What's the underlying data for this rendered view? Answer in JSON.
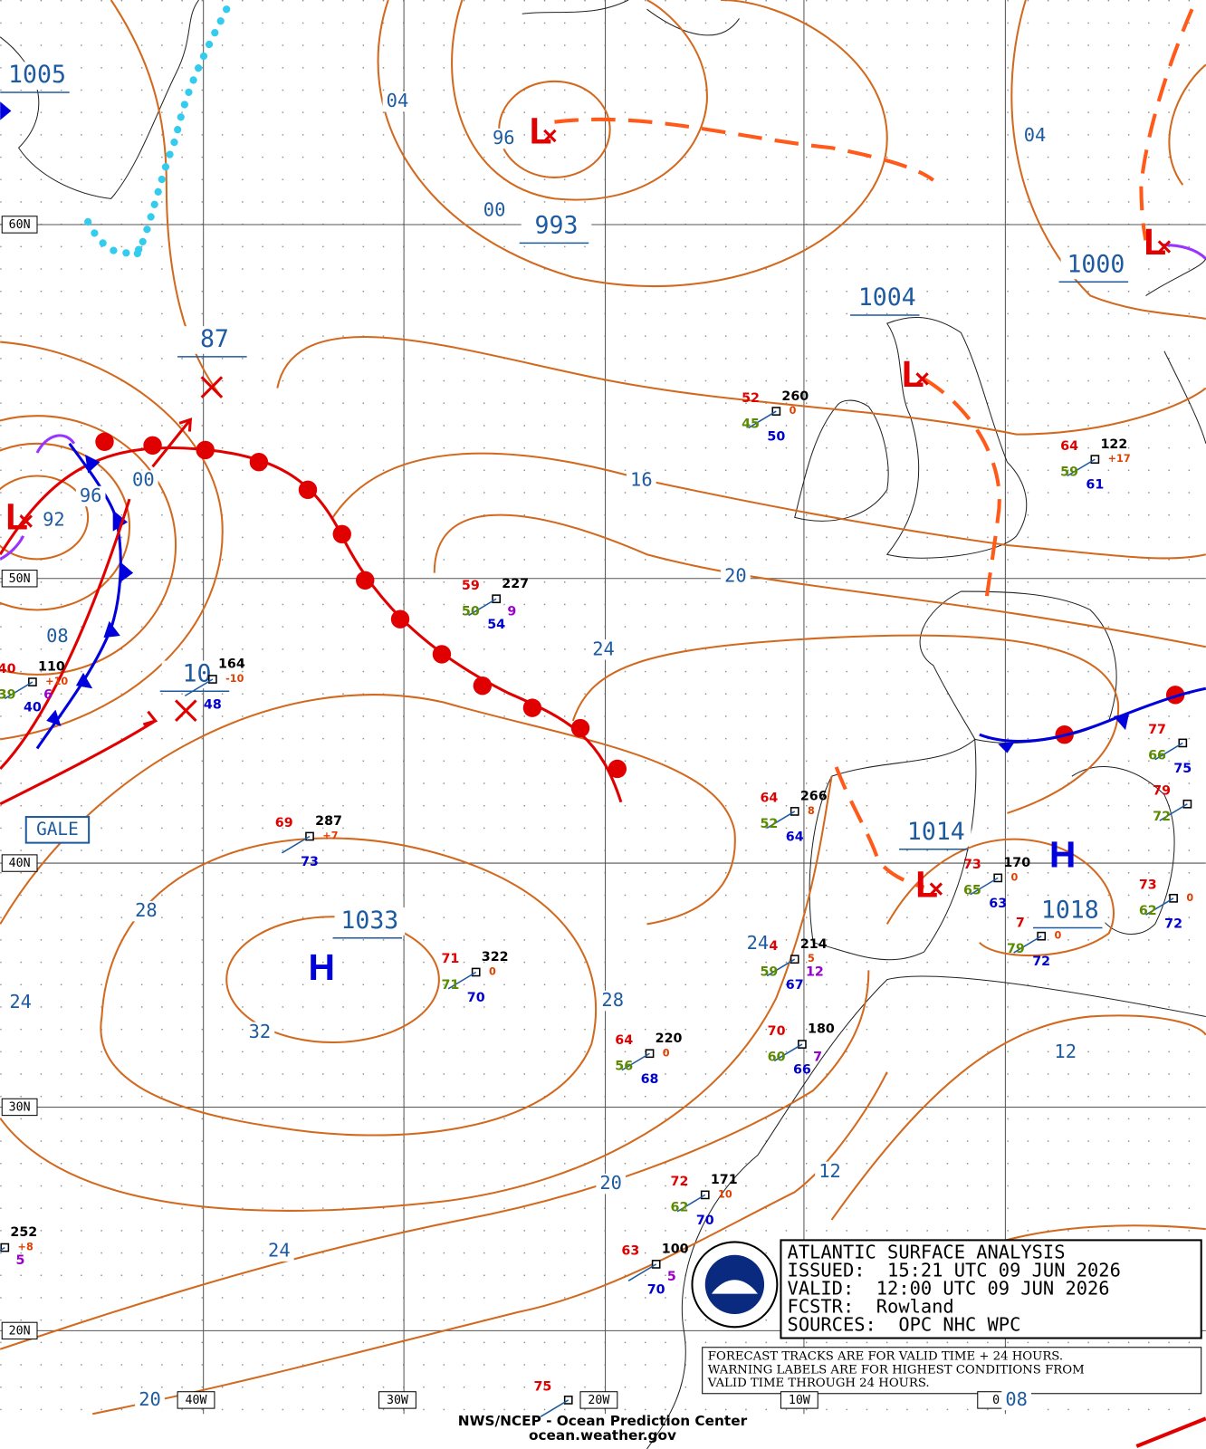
{
  "grid_labels": {
    "lat": [
      "60N",
      "50N",
      "40N",
      "30N",
      "20N"
    ],
    "lon": [
      "40W",
      "30W",
      "20W",
      "10W",
      "0"
    ]
  },
  "center_labels": [
    "1005",
    "993",
    "1000",
    "1004",
    "87",
    "10",
    "1033",
    "1014",
    "1018"
  ],
  "isobar_labels": [
    "04",
    "96",
    "00",
    "04",
    "96",
    "00",
    "92",
    "16",
    "20",
    "08",
    "24",
    "28",
    "24",
    "32",
    "28",
    "24",
    "12",
    "20",
    "12",
    "24",
    "20",
    "08"
  ],
  "systems": [
    "L",
    "L",
    "L",
    "L",
    "L",
    "H",
    "H"
  ],
  "gale": "GALE",
  "role_colors": {
    "temp": "#e00000",
    "pres": "#000000",
    "tend": "#e04000",
    "dew": "#5a8a00",
    "wx": "#9900cc",
    "sst": "#0000cc"
  },
  "stations": [
    [
      {
        "role": "temp",
        "text": "52"
      },
      {
        "role": "pres",
        "text": "260"
      },
      {
        "role": "tend",
        "text": "0"
      },
      {
        "role": "dew",
        "text": "45"
      },
      {
        "role": "sst",
        "text": "50"
      }
    ],
    [
      {
        "role": "temp",
        "text": "64"
      },
      {
        "role": "pres",
        "text": "122"
      },
      {
        "role": "tend",
        "text": "+17"
      },
      {
        "role": "dew",
        "text": "59"
      },
      {
        "role": "sst",
        "text": "61"
      }
    ],
    [
      {
        "role": "temp",
        "text": "59"
      },
      {
        "role": "pres",
        "text": "227"
      },
      {
        "role": "dew",
        "text": "50"
      },
      {
        "role": "wx",
        "text": "9"
      },
      {
        "role": "sst",
        "text": "54"
      }
    ],
    [
      {
        "role": "temp",
        "text": "40"
      },
      {
        "role": "pres",
        "text": "110"
      },
      {
        "role": "tend",
        "text": "+10"
      },
      {
        "role": "dew",
        "text": "39"
      },
      {
        "role": "wx",
        "text": "6"
      },
      {
        "role": "sst",
        "text": "40"
      }
    ],
    [
      {
        "role": "pres",
        "text": "164"
      },
      {
        "role": "tend",
        "text": "-10"
      },
      {
        "role": "sst",
        "text": "48"
      }
    ],
    [
      {
        "role": "temp",
        "text": "64"
      },
      {
        "role": "pres",
        "text": "266"
      },
      {
        "role": "tend",
        "text": "8"
      },
      {
        "role": "dew",
        "text": "52"
      },
      {
        "role": "sst",
        "text": "64"
      }
    ],
    [
      {
        "role": "temp",
        "text": "69"
      },
      {
        "role": "pres",
        "text": "287"
      },
      {
        "role": "tend",
        "text": "+7"
      },
      {
        "role": "sst",
        "text": "73"
      }
    ],
    [
      {
        "role": "temp",
        "text": "73"
      },
      {
        "role": "pres",
        "text": "170"
      },
      {
        "role": "tend",
        "text": "0"
      },
      {
        "role": "dew",
        "text": "65"
      },
      {
        "role": "sst",
        "text": "63"
      }
    ],
    [
      {
        "role": "temp",
        "text": "71"
      },
      {
        "role": "pres",
        "text": "322"
      },
      {
        "role": "tend",
        "text": "0"
      },
      {
        "role": "dew",
        "text": "71"
      },
      {
        "role": "sst",
        "text": "70"
      }
    ],
    [
      {
        "role": "temp",
        "text": "4"
      },
      {
        "role": "pres",
        "text": "214"
      },
      {
        "role": "tend",
        "text": "5"
      },
      {
        "role": "dew",
        "text": "59"
      },
      {
        "role": "wx",
        "text": "12"
      },
      {
        "role": "sst",
        "text": "67"
      }
    ],
    [
      {
        "role": "temp",
        "text": "7"
      },
      {
        "role": "tend",
        "text": "0"
      },
      {
        "role": "dew",
        "text": "79"
      },
      {
        "role": "sst",
        "text": "72"
      }
    ],
    [
      {
        "role": "temp",
        "text": "73"
      },
      {
        "role": "tend",
        "text": "0"
      },
      {
        "role": "dew",
        "text": "62"
      },
      {
        "role": "sst",
        "text": "72"
      }
    ],
    [
      {
        "role": "temp",
        "text": "77"
      },
      {
        "role": "dew",
        "text": "66"
      },
      {
        "role": "sst",
        "text": "75"
      }
    ],
    [
      {
        "role": "temp",
        "text": "79"
      },
      {
        "role": "dew",
        "text": "72"
      }
    ],
    [
      {
        "role": "temp",
        "text": "64"
      },
      {
        "role": "pres",
        "text": "220"
      },
      {
        "role": "tend",
        "text": "0"
      },
      {
        "role": "dew",
        "text": "56"
      },
      {
        "role": "sst",
        "text": "68"
      }
    ],
    [
      {
        "role": "temp",
        "text": "70"
      },
      {
        "role": "pres",
        "text": "180"
      },
      {
        "role": "dew",
        "text": "60"
      },
      {
        "role": "wx",
        "text": "7"
      },
      {
        "role": "sst",
        "text": "66"
      }
    ],
    [
      {
        "role": "temp",
        "text": "72"
      },
      {
        "role": "pres",
        "text": "171"
      },
      {
        "role": "tend",
        "text": "10"
      },
      {
        "role": "dew",
        "text": "62"
      },
      {
        "role": "sst",
        "text": "70"
      }
    ],
    [
      {
        "role": "temp",
        "text": "63"
      },
      {
        "role": "pres",
        "text": "100"
      },
      {
        "role": "wx",
        "text": "5"
      },
      {
        "role": "sst",
        "text": "70"
      }
    ],
    [
      {
        "role": "pres",
        "text": "252"
      },
      {
        "role": "tend",
        "text": "+8"
      },
      {
        "role": "wx",
        "text": "5"
      }
    ],
    [
      {
        "role": "temp",
        "text": "75"
      }
    ]
  ],
  "info_box": [
    "ATLANTIC SURFACE ANALYSIS",
    "ISSUED:  15:21 UTC 09 JUN 2026",
    "VALID:  12:00 UTC 09 JUN 2026",
    "FCSTR:  Rowland",
    "SOURCES:  OPC NHC WPC"
  ],
  "notice": [
    "FORECAST TRACKS ARE FOR VALID TIME + 24 HOURS.",
    "WARNING LABELS ARE FOR HIGHEST CONDITIONS FROM",
    "VALID TIME THROUGH 24 HOURS."
  ],
  "footer": [
    "NWS/NCEP - Ocean Prediction Center",
    "ocean.weather.gov"
  ]
}
